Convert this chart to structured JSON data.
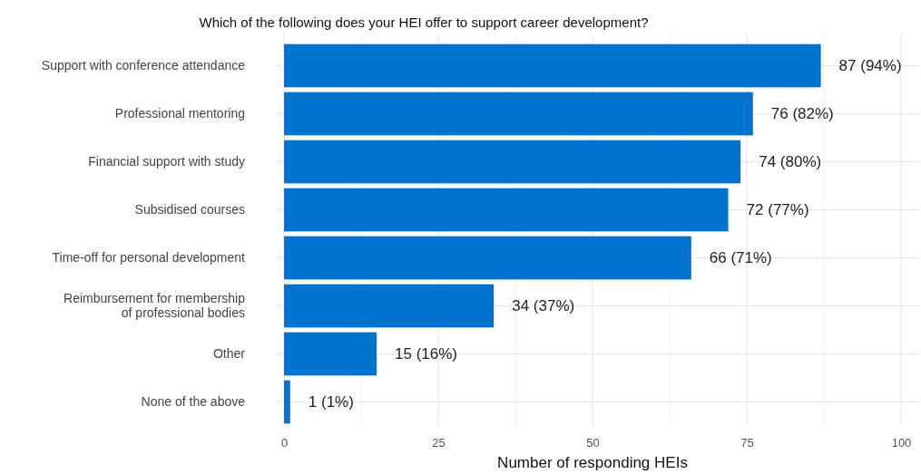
{
  "chart_data": {
    "type": "bar",
    "orientation": "horizontal",
    "title": "Which of the following does your HEI offer to support career development?",
    "xlabel": "Number of responding HEIs",
    "categories": [
      "Support with conference attendance",
      "Professional mentoring",
      "Financial support with study",
      "Subsidised courses",
      "Time-off for personal development",
      "Reimbursement for membership\nof professional bodies",
      "Other",
      "None of the above"
    ],
    "values": [
      87,
      76,
      74,
      72,
      66,
      34,
      15,
      1
    ],
    "value_labels": [
      "87 (94%)",
      "76 (82%)",
      "74 (80%)",
      "72 (77%)",
      "66 (71%)",
      "34 (37%)",
      "15 (16%)",
      "1 (1%)"
    ],
    "color": "#0073cf",
    "xlim": [
      0,
      100
    ],
    "xticks": [
      0,
      {
        "value": 12.5,
        "label": null
      },
      25,
      {
        "value": 37.5,
        "label": null
      },
      50,
      {
        "value": 62.5,
        "label": null
      },
      75,
      {
        "value": 87.5,
        "label": null
      },
      100
    ],
    "grid": true
  }
}
